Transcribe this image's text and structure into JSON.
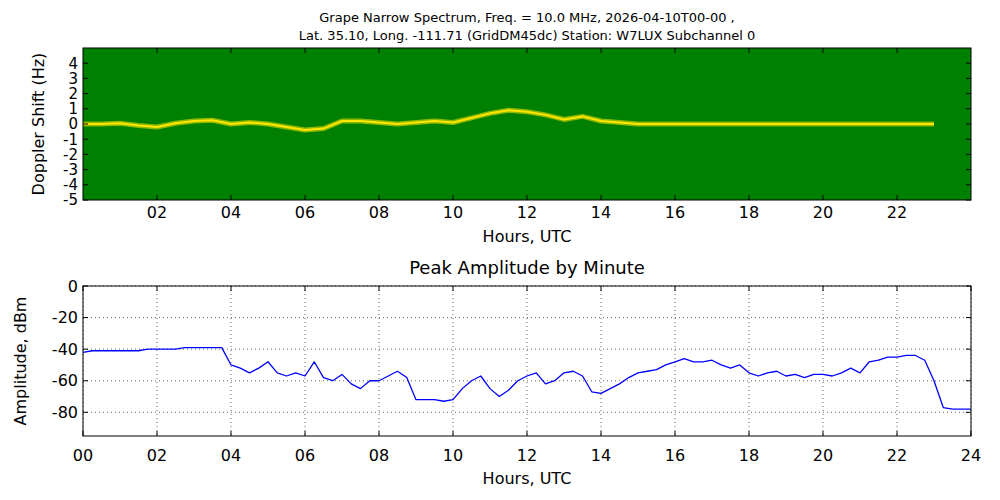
{
  "chart_data": [
    {
      "type": "line",
      "title": "Grape Narrow Spectrum, Freq. = 10.0 MHz, 2026-04-10T00-00 ,",
      "subtitle": "Lat.  35.10, Long. -111.71 (GridDM45dc) Station: W7LUX Subchannel 0",
      "x_label": "Hours, UTC",
      "y_label": "Doppler Shift (Hz)",
      "background": "#008000",
      "x": [
        0,
        0.5,
        1,
        1.5,
        2,
        2.5,
        3,
        3.5,
        4,
        4.5,
        5,
        5.5,
        6,
        6.5,
        7,
        7.5,
        8,
        8.5,
        9,
        9.5,
        10,
        10.5,
        11,
        11.5,
        12,
        12.5,
        13,
        13.5,
        14,
        14.5,
        15,
        15.5,
        16,
        16.5,
        17,
        17.5,
        18,
        18.5,
        19,
        19.5,
        20,
        20.5,
        21,
        21.5,
        22,
        22.5,
        23,
        23.5,
        24
      ],
      "series": [
        {
          "color": "#ffe600",
          "values": [
            0,
            0,
            0.05,
            -0.1,
            -0.2,
            0.05,
            0.2,
            0.25,
            0,
            0.1,
            0,
            -0.2,
            -0.4,
            -0.3,
            0.2,
            0.2,
            0.1,
            0,
            0.1,
            0.2,
            0.1,
            0.4,
            0.7,
            0.9,
            0.8,
            0.6,
            0.3,
            0.5,
            0.2,
            0.1,
            0,
            0,
            0,
            0,
            0,
            0,
            0,
            0,
            0,
            0,
            0,
            0,
            0,
            0,
            0,
            0,
            0,
            null,
            null
          ]
        }
      ],
      "xlim": [
        0,
        24
      ],
      "ylim": [
        -5,
        5
      ],
      "xticks": [
        {
          "value": 2,
          "label": "02"
        },
        {
          "value": 4,
          "label": "04"
        },
        {
          "value": 6,
          "label": "06"
        },
        {
          "value": 8,
          "label": "08"
        },
        10,
        12,
        14,
        16,
        18,
        20,
        22
      ],
      "yticks": [
        -5,
        -4,
        -3,
        -2,
        -1,
        0,
        1,
        2,
        3,
        4
      ],
      "grid": false
    },
    {
      "type": "line",
      "title": "Peak Amplitude by Minute",
      "x_label": "Hours, UTC",
      "y_label": "Amplitude, dBm",
      "x": [
        0,
        0.25,
        0.5,
        0.75,
        1,
        1.25,
        1.5,
        1.75,
        2,
        2.25,
        2.5,
        2.75,
        3,
        3.25,
        3.5,
        3.75,
        4,
        4.25,
        4.5,
        4.75,
        5,
        5.25,
        5.5,
        5.75,
        6,
        6.25,
        6.5,
        6.75,
        7,
        7.25,
        7.5,
        7.75,
        8,
        8.25,
        8.5,
        8.75,
        9,
        9.25,
        9.5,
        9.75,
        10,
        10.25,
        10.5,
        10.75,
        11,
        11.25,
        11.5,
        11.75,
        12,
        12.25,
        12.5,
        12.75,
        13,
        13.25,
        13.5,
        13.75,
        14,
        14.25,
        14.5,
        14.75,
        15,
        15.25,
        15.5,
        15.75,
        16,
        16.25,
        16.5,
        16.75,
        17,
        17.25,
        17.5,
        17.75,
        18,
        18.25,
        18.5,
        18.75,
        19,
        19.25,
        19.5,
        19.75,
        20,
        20.25,
        20.5,
        20.75,
        21,
        21.25,
        21.5,
        21.75,
        22,
        22.25,
        22.5,
        22.75,
        23,
        23.25,
        23.5,
        23.75,
        24
      ],
      "series": [
        {
          "color": "#0000ff",
          "values": [
            -42,
            -41,
            -41,
            -41,
            -41,
            -41,
            -41,
            -40,
            -40,
            -40,
            -40,
            -39,
            -39,
            -39,
            -39,
            -39,
            -50,
            -52,
            -55,
            -52,
            -48,
            -55,
            -57,
            -55,
            -57,
            -48,
            -58,
            -60,
            -56,
            -62,
            -65,
            -60,
            -60,
            -57,
            -54,
            -58,
            -72,
            -72,
            -72,
            -73,
            -72,
            -65,
            -60,
            -57,
            -65,
            -70,
            -66,
            -60,
            -57,
            -55,
            -62,
            -60,
            -55,
            -54,
            -57,
            -67,
            -68,
            -65,
            -62,
            -58,
            -55,
            -54,
            -53,
            -50,
            -48,
            -46,
            -48,
            -48,
            -47,
            -50,
            -52,
            -50,
            -55,
            -57,
            -55,
            -54,
            -57,
            -56,
            -58,
            -56,
            -56,
            -57,
            -55,
            -52,
            -55,
            -48,
            -47,
            -45,
            -45,
            -44,
            -44,
            -47,
            -60,
            -77,
            -78,
            -78,
            -78
          ]
        }
      ],
      "xlim": [
        0,
        24
      ],
      "ylim": [
        -95,
        0
      ],
      "xticks": [
        {
          "value": 0,
          "label": "00"
        },
        {
          "value": 2,
          "label": "02"
        },
        {
          "value": 4,
          "label": "04"
        },
        {
          "value": 6,
          "label": "06"
        },
        {
          "value": 8,
          "label": "08"
        },
        10,
        12,
        14,
        16,
        18,
        20,
        22,
        24
      ],
      "yticks": [
        0,
        -20,
        -40,
        -60,
        -80
      ],
      "grid": true
    }
  ]
}
